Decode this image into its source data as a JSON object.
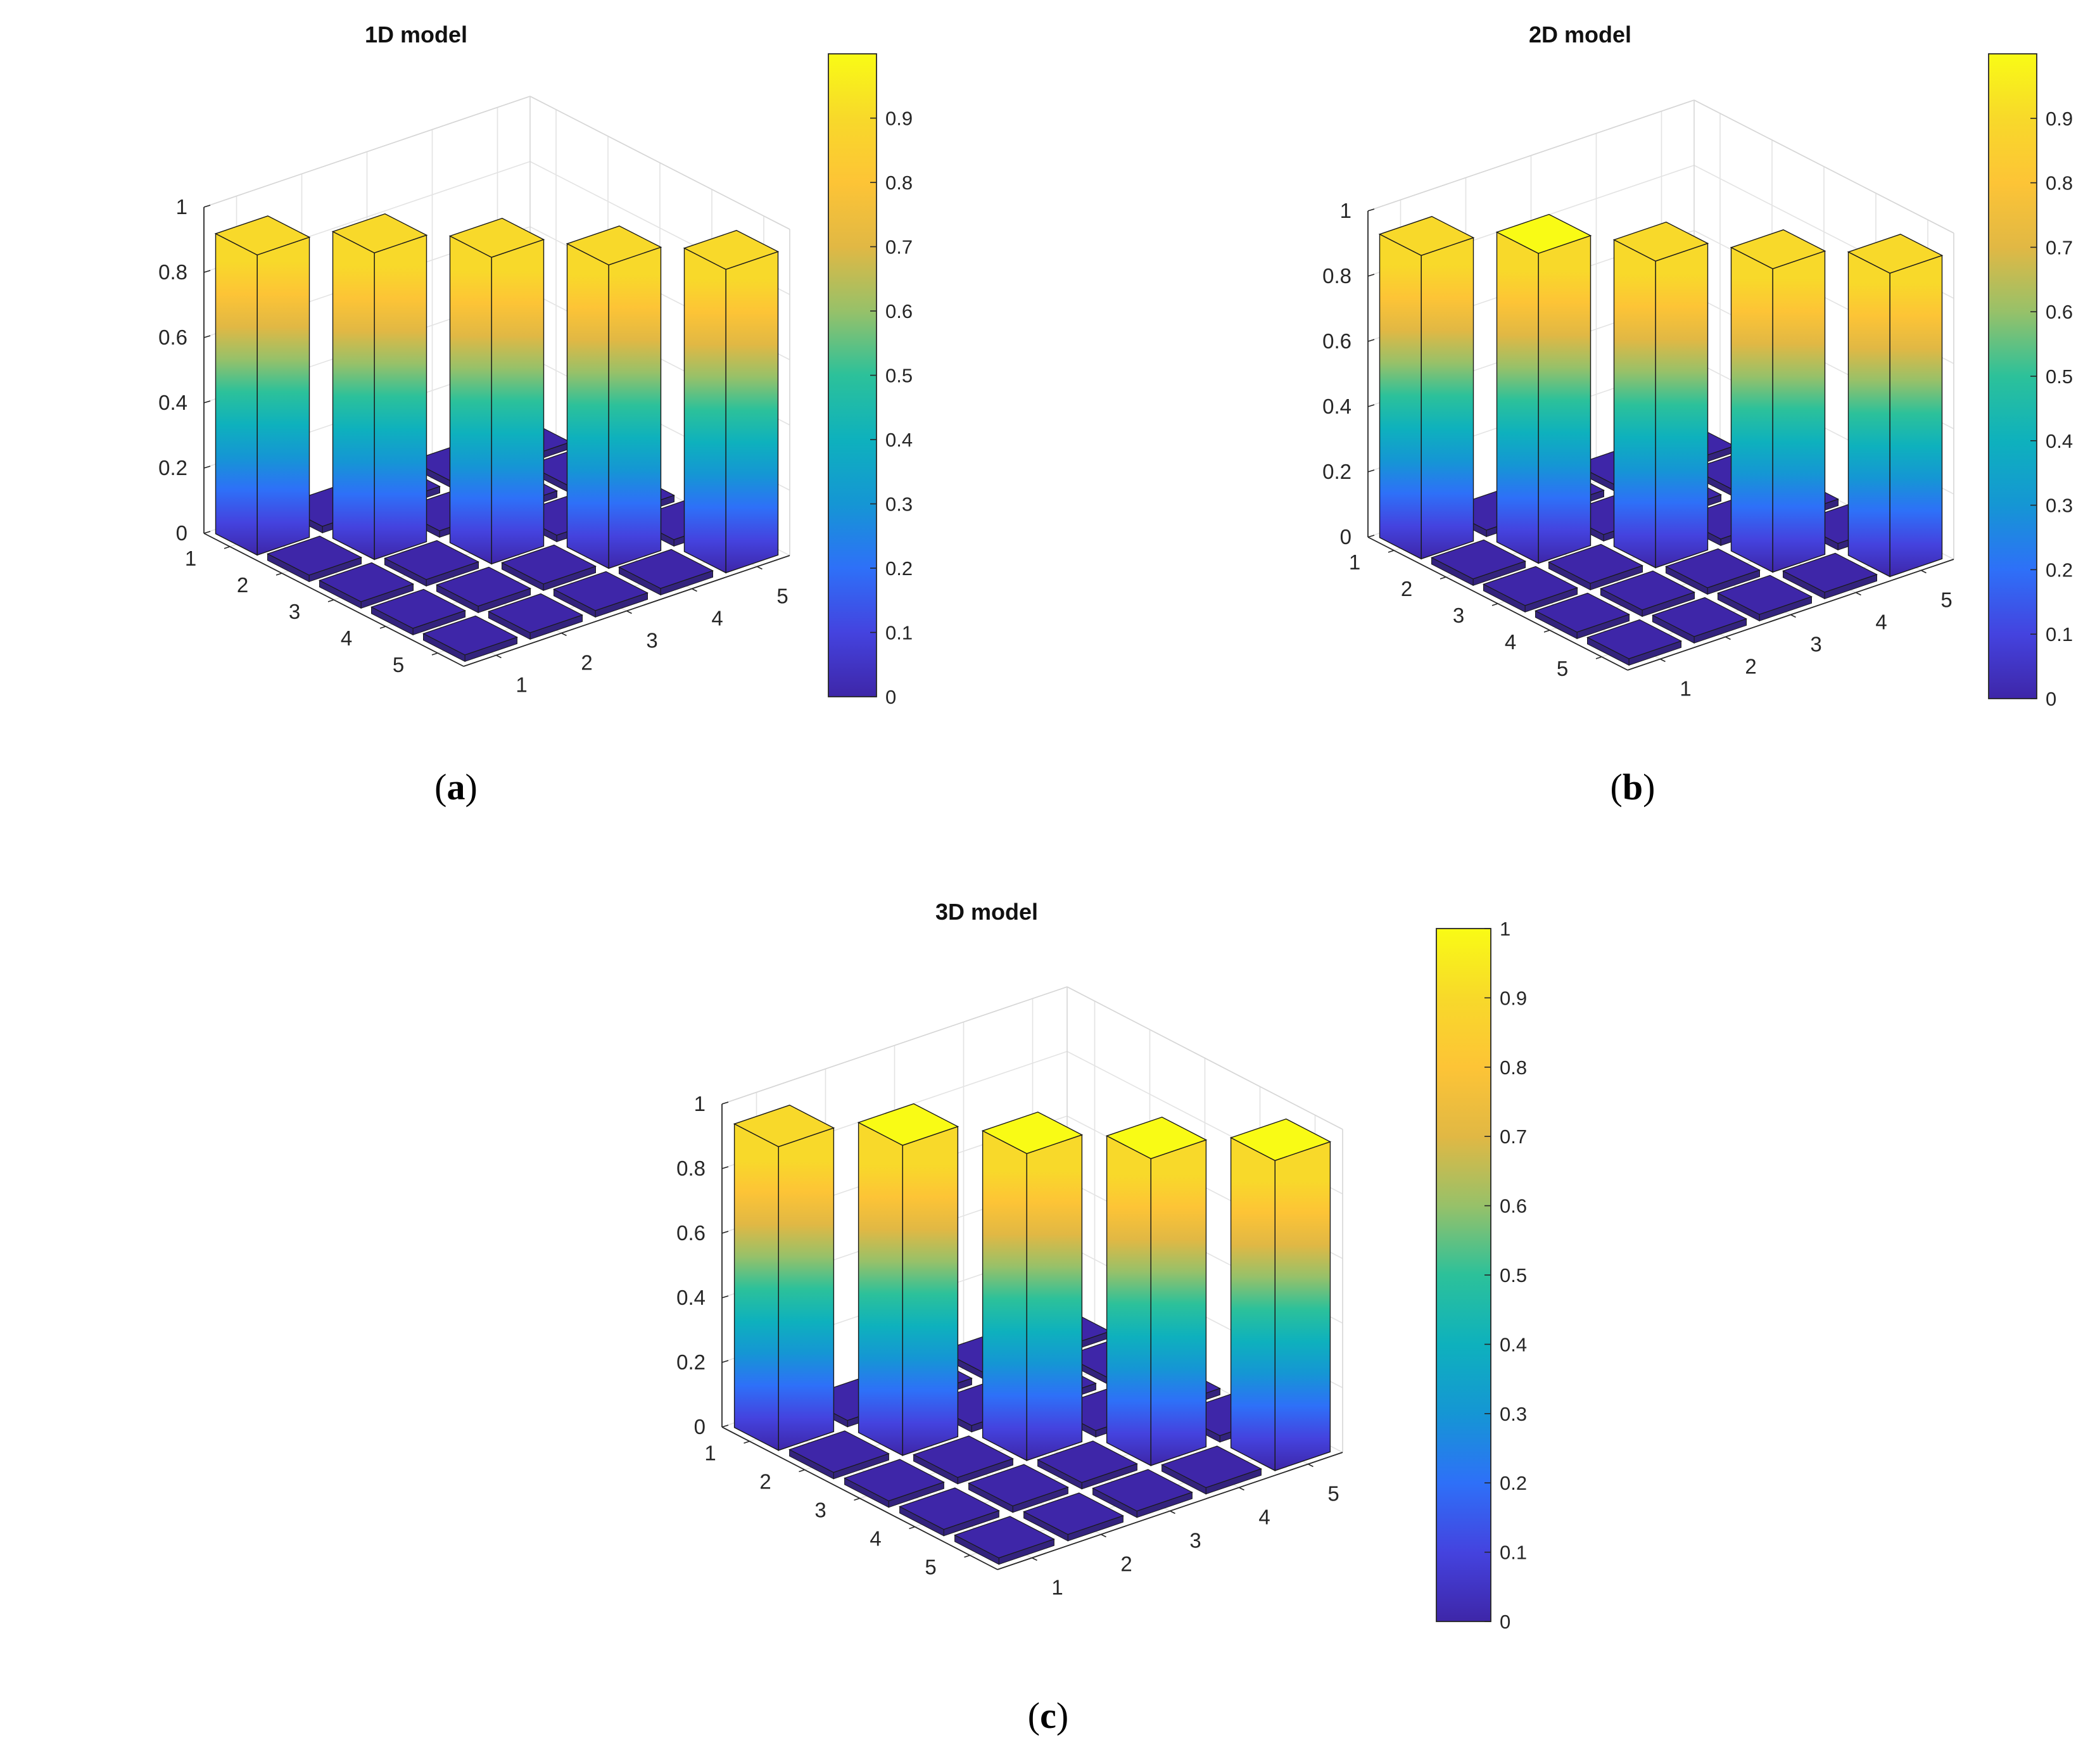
{
  "figure": {
    "panels_note": "three 3D bar plots of a 5x5 diagonal matrix with colorbars",
    "colormap": [
      "#3e26a8",
      "#4443df",
      "#2e70f8",
      "#1596d4",
      "#0eb1bd",
      "#2cc19a",
      "#97c169",
      "#e1b844",
      "#fdc436",
      "#f8d92a",
      "#f9fb15"
    ]
  },
  "chart_data": [
    {
      "type": "bar3",
      "title": "1D model",
      "caption": "(a)",
      "caption_letter": "a",
      "rows": [
        1,
        2,
        3,
        4,
        5
      ],
      "cols": [
        1,
        2,
        3,
        4,
        5
      ],
      "values": [
        [
          0.92,
          0,
          0,
          0,
          0
        ],
        [
          0,
          0.94,
          0,
          0,
          0
        ],
        [
          0,
          0,
          0.94,
          0,
          0
        ],
        [
          0,
          0,
          0,
          0.93,
          0
        ],
        [
          0,
          0,
          0,
          0,
          0.93
        ]
      ],
      "zlim": [
        0,
        1
      ],
      "z_ticks": [
        "0",
        "0.2",
        "0.4",
        "0.6",
        "0.8",
        "1"
      ],
      "row_tick_labels": [
        "1",
        "2",
        "3",
        "4",
        "5"
      ],
      "col_tick_labels": [
        "1",
        "2",
        "3",
        "4",
        "5"
      ],
      "colorbar": {
        "limits": [
          0,
          1
        ],
        "ticks": [
          "0",
          "0.1",
          "0.2",
          "0.3",
          "0.4",
          "0.5",
          "0.6",
          "0.7",
          "0.8",
          "0.9"
        ]
      }
    },
    {
      "type": "bar3",
      "title": "2D model",
      "caption": "(b)",
      "caption_letter": "b",
      "rows": [
        1,
        2,
        3,
        4,
        5
      ],
      "cols": [
        1,
        2,
        3,
        4,
        5
      ],
      "values": [
        [
          0.93,
          0,
          0,
          0,
          0
        ],
        [
          0,
          0.95,
          0,
          0,
          0
        ],
        [
          0,
          0,
          0.94,
          0,
          0
        ],
        [
          0,
          0,
          0,
          0.93,
          0
        ],
        [
          0,
          0,
          0,
          0,
          0.93
        ]
      ],
      "zlim": [
        0,
        1
      ],
      "z_ticks": [
        "0",
        "0.2",
        "0.4",
        "0.6",
        "0.8",
        "1"
      ],
      "row_tick_labels": [
        "1",
        "2",
        "3",
        "4",
        "5"
      ],
      "col_tick_labels": [
        "1",
        "2",
        "3",
        "4",
        "5"
      ],
      "colorbar": {
        "limits": [
          0,
          1
        ],
        "ticks": [
          "0",
          "0.1",
          "0.2",
          "0.3",
          "0.4",
          "0.5",
          "0.6",
          "0.7",
          "0.8",
          "0.9"
        ]
      }
    },
    {
      "type": "bar3",
      "title": "3D model",
      "caption": "(c)",
      "caption_letter": "c",
      "rows": [
        1,
        2,
        3,
        4,
        5
      ],
      "cols": [
        1,
        2,
        3,
        4,
        5
      ],
      "values": [
        [
          0.94,
          0,
          0,
          0,
          0
        ],
        [
          0,
          0.96,
          0,
          0,
          0
        ],
        [
          0,
          0,
          0.95,
          0,
          0
        ],
        [
          0,
          0,
          0,
          0.95,
          0
        ],
        [
          0,
          0,
          0,
          0,
          0.96
        ]
      ],
      "zlim": [
        0,
        1
      ],
      "z_ticks": [
        "0",
        "0.2",
        "0.4",
        "0.6",
        "0.8",
        "1"
      ],
      "row_tick_labels": [
        "1",
        "2",
        "3",
        "4",
        "5"
      ],
      "col_tick_labels": [
        "1",
        "2",
        "3",
        "4",
        "5"
      ],
      "colorbar": {
        "limits": [
          0,
          1
        ],
        "ticks": [
          "0",
          "0.1",
          "0.2",
          "0.3",
          "0.4",
          "0.5",
          "0.6",
          "0.7",
          "0.8",
          "0.9",
          "1"
        ]
      }
    }
  ]
}
